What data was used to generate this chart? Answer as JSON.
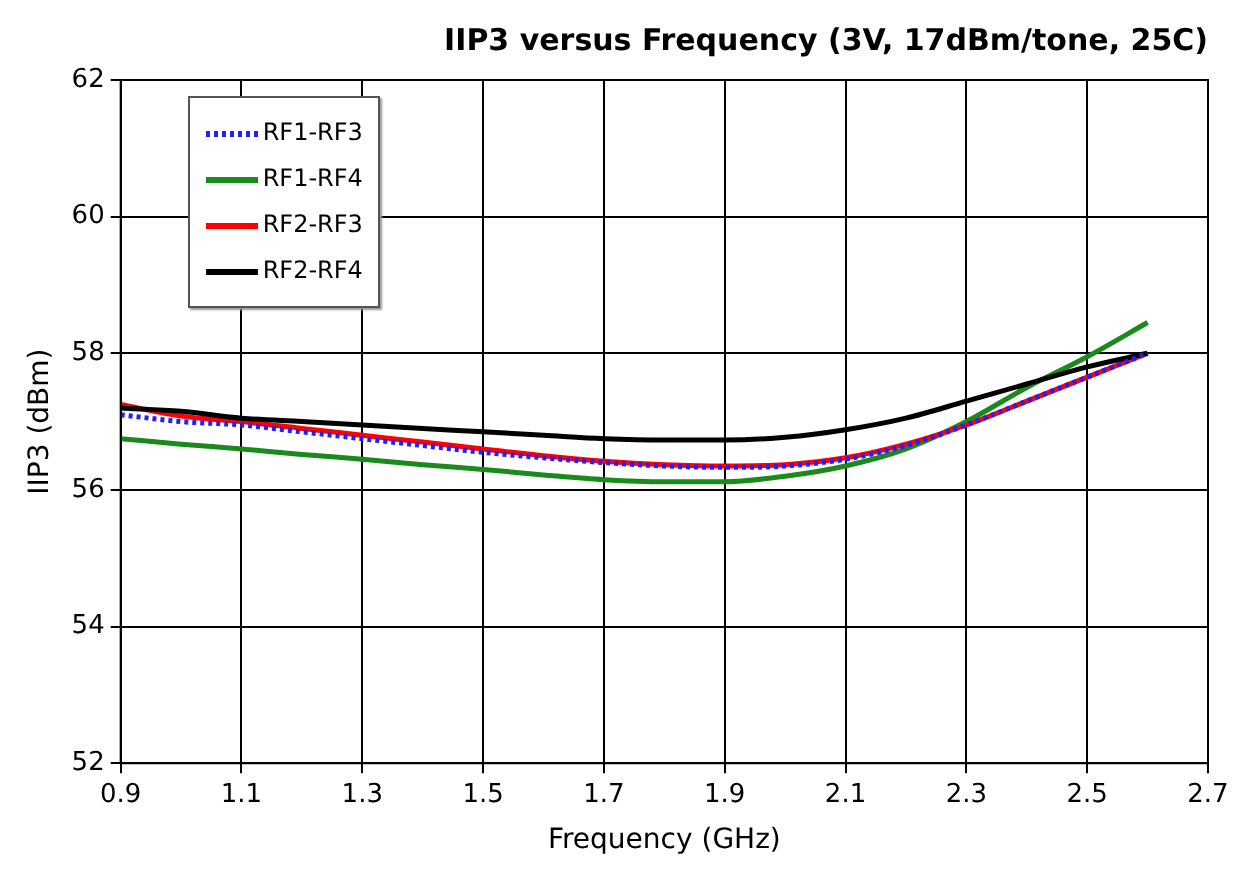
{
  "chart_data": {
    "type": "line",
    "title": "IIP3 versus Frequency (3V, 17dBm/tone, 25C)",
    "xlabel": "Frequency (GHz)",
    "ylabel": "IIP3 (dBm)",
    "x": [
      0.9,
      1.0,
      1.1,
      1.2,
      1.3,
      1.4,
      1.5,
      1.6,
      1.7,
      1.8,
      1.9,
      2.0,
      2.1,
      2.2,
      2.3,
      2.4,
      2.5,
      2.6
    ],
    "series": [
      {
        "name": "RF1-RF3",
        "color": "#1f1fff",
        "line_style": "dotted",
        "values": [
          57.1,
          57.0,
          56.95,
          56.85,
          56.75,
          56.65,
          56.55,
          56.47,
          56.4,
          56.35,
          56.33,
          56.35,
          56.45,
          56.65,
          56.95,
          57.3,
          57.65,
          58.0
        ]
      },
      {
        "name": "RF1-RF4",
        "color": "#1a8a1a",
        "values": [
          56.75,
          56.67,
          56.6,
          56.52,
          56.45,
          56.37,
          56.3,
          56.22,
          56.15,
          56.12,
          56.12,
          56.2,
          56.35,
          56.6,
          57.0,
          57.5,
          57.95,
          58.45
        ]
      },
      {
        "name": "RF2-RF3",
        "color": "#ff0000",
        "values": [
          57.25,
          57.08,
          57.0,
          56.9,
          56.8,
          56.7,
          56.6,
          56.5,
          56.42,
          56.37,
          56.35,
          56.37,
          56.47,
          56.67,
          56.95,
          57.3,
          57.65,
          58.0
        ]
      },
      {
        "name": "RF2-RF4",
        "color": "#000000",
        "values": [
          57.2,
          57.15,
          57.05,
          57.0,
          56.95,
          56.9,
          56.85,
          56.8,
          56.75,
          56.73,
          56.73,
          56.77,
          56.88,
          57.05,
          57.3,
          57.55,
          57.8,
          58.0
        ]
      }
    ],
    "xlim": [
      0.9,
      2.7
    ],
    "xticks": [
      0.9,
      1.1,
      1.3,
      1.5,
      1.7,
      1.9,
      2.1,
      2.3,
      2.5,
      2.7
    ],
    "ylim": [
      52,
      62
    ],
    "yticks": [
      52,
      54,
      56,
      58,
      60,
      62
    ],
    "grid": true,
    "legend": "top left",
    "marker": "none",
    "line_style": "solid"
  }
}
